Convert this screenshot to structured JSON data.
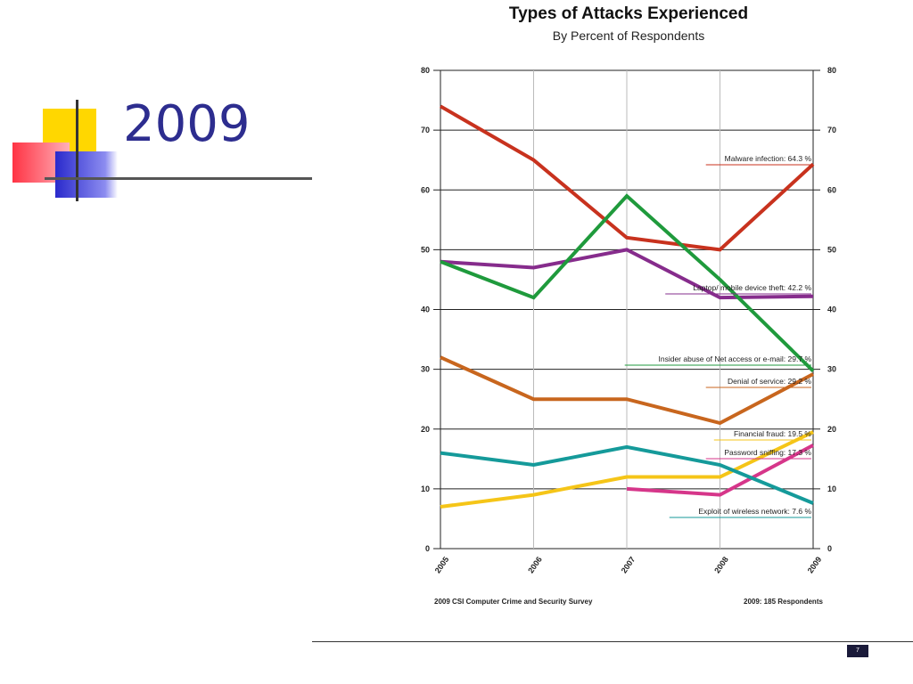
{
  "slide": {
    "title": "2009",
    "page_number": "7",
    "footer_left": "2009 CSI Computer Crime and Security Survey",
    "footer_right": "2009: 185 Respondents"
  },
  "colors": {
    "title": "#2d2d8f",
    "deco_yellow": "#ffd700",
    "deco_red": "#ff3344",
    "deco_blue": "#2a2acc"
  },
  "chart_data": {
    "type": "line",
    "title": "Types of Attacks Experienced",
    "subtitle": "By Percent of Respondents",
    "x": [
      "2005",
      "2006",
      "2007",
      "2008",
      "2009"
    ],
    "ylim": [
      0,
      80
    ],
    "yticks": [
      "0",
      "10",
      "20",
      "30",
      "40",
      "50",
      "60",
      "70",
      "80"
    ],
    "grid": true,
    "series": [
      {
        "name": "Malware infection:",
        "value_label": "64.3 %",
        "color": "#c8321e",
        "values": [
          74,
          65,
          52,
          50,
          64.3
        ]
      },
      {
        "name": "Laptop/ mobile device theft:",
        "value_label": "42.2 %",
        "color": "#862c8c",
        "values": [
          48,
          47,
          50,
          42,
          42.2
        ]
      },
      {
        "name": "Insider abuse of Net access or e-mail:",
        "value_label": "29.7 %",
        "color": "#1f9a3c",
        "values": [
          48,
          42,
          59,
          45,
          29.7
        ]
      },
      {
        "name": "Denial of service:",
        "value_label": "29.2 %",
        "color": "#c8661e",
        "values": [
          32,
          25,
          25,
          21,
          29.2
        ]
      },
      {
        "name": "Financial fraud:",
        "value_label": "19.5 %",
        "color": "#f5c518",
        "values": [
          7,
          9,
          12,
          12,
          19.5
        ]
      },
      {
        "name": "Password sniffing:",
        "value_label": "17.3 %",
        "color": "#d6368a",
        "values": [
          null,
          null,
          10,
          9,
          17.3
        ]
      },
      {
        "name": "Exploit of wireless network:",
        "value_label": "7.6 %",
        "color": "#159a9a",
        "values": [
          16,
          14,
          17,
          14,
          7.6
        ]
      }
    ]
  }
}
